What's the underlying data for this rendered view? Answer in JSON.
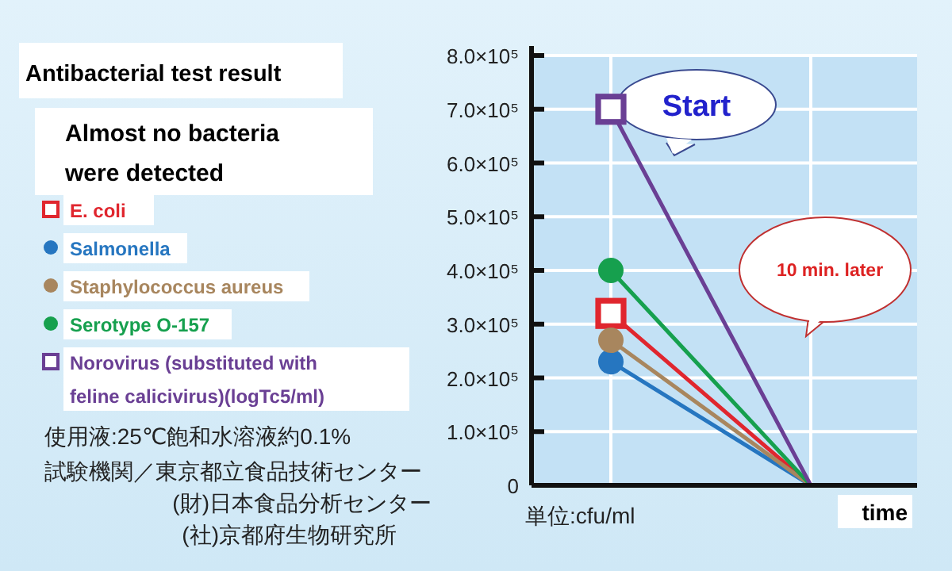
{
  "chart_data": {
    "type": "line",
    "title": "Antibacterial test result",
    "subtitle": "Almost no bacteria were detected",
    "xlabel": "time",
    "categories": [
      null,
      null
    ],
    "series": [
      {
        "name": "E. coli",
        "color": "#e0262e",
        "marker": "square",
        "values": [
          320000,
          0
        ]
      },
      {
        "name": "Salmonella",
        "color": "#2676c0",
        "marker": "circle",
        "values": [
          230000,
          0
        ]
      },
      {
        "name": "Staphylococcus aureus",
        "color": "#a8865e",
        "marker": "circle",
        "values": [
          270000,
          0
        ]
      },
      {
        "name": "Serotype O-157",
        "color": "#16a04e",
        "marker": "circle",
        "values": [
          400000,
          0
        ]
      },
      {
        "name": "Norovirus (substituted with feline calicivirus)(logTc5/ml)",
        "color": "#6a3f94",
        "marker": "square",
        "values": [
          700000,
          0
        ]
      }
    ],
    "ylim": [
      0,
      800000
    ],
    "yticks": [
      0,
      {
        "value": 100000,
        "label": "1.0×10⁵"
      },
      {
        "value": 200000,
        "label": "2.0×10⁵"
      },
      {
        "value": 300000,
        "label": "3.0×10⁵"
      },
      {
        "value": 400000,
        "label": "4.0×10⁵"
      },
      {
        "value": 500000,
        "label": "5.0×10⁵"
      },
      {
        "value": 600000,
        "label": "6.0×10⁵"
      },
      {
        "value": 700000,
        "label": "7.0×10⁵"
      },
      {
        "value": 800000,
        "label": "8.0×10⁵"
      }
    ],
    "grid": true,
    "legend": "left",
    "line_style": "solid",
    "annotations": [
      "Start",
      "10 min. later",
      "単位:cfu/ml",
      "使用液:25℃飽和水溶液約0.1%",
      "試験機関／東京都立食品技術センター",
      "(財)日本食品分析センター",
      "(社)京都府生物研究所"
    ]
  }
}
